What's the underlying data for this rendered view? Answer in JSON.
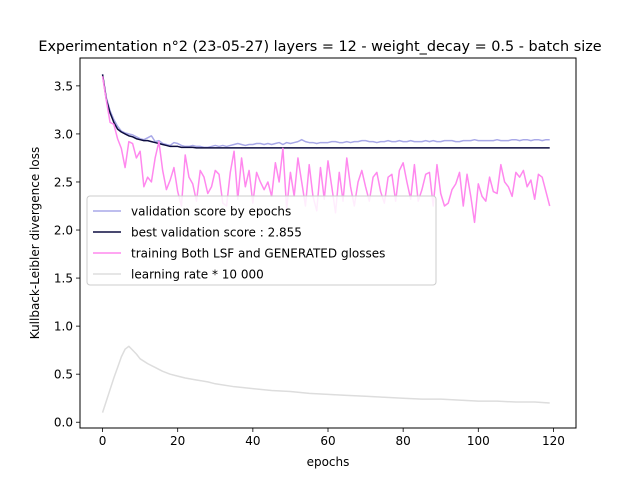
{
  "chart_data": {
    "type": "line",
    "title": "Experimentation n°2 (23-05-27) layers = 12 - weight_decay = 0.5 - batch size",
    "xlabel": "epochs",
    "ylabel": "Kullback-Leibler divergence loss",
    "xlim": [
      -6,
      126
    ],
    "ylim": [
      -0.06,
      3.79
    ],
    "xticks": [
      0,
      20,
      40,
      60,
      80,
      100,
      120
    ],
    "yticks": [
      0.0,
      0.5,
      1.0,
      1.5,
      2.0,
      2.5,
      3.0,
      3.5
    ],
    "ytick_labels": [
      "0.0",
      "0.5",
      "1.0",
      "1.5",
      "2.0",
      "2.5",
      "3.0",
      "3.5"
    ],
    "legend_position": "center-left",
    "grid": false,
    "series": [
      {
        "name": "validation score by epochs",
        "color": "#a8a8e8",
        "x": [
          0,
          1,
          2,
          3,
          4,
          5,
          6,
          7,
          8,
          9,
          10,
          11,
          12,
          13,
          14,
          15,
          16,
          17,
          18,
          19,
          20,
          21,
          22,
          23,
          24,
          25,
          26,
          27,
          28,
          29,
          30,
          31,
          32,
          33,
          34,
          35,
          36,
          37,
          38,
          39,
          40,
          41,
          42,
          43,
          44,
          45,
          46,
          47,
          48,
          49,
          50,
          51,
          52,
          53,
          54,
          55,
          56,
          57,
          58,
          59,
          60,
          61,
          62,
          63,
          64,
          65,
          66,
          67,
          68,
          69,
          70,
          71,
          72,
          73,
          74,
          75,
          76,
          77,
          78,
          79,
          80,
          81,
          82,
          83,
          84,
          85,
          86,
          87,
          88,
          89,
          90,
          91,
          92,
          93,
          94,
          95,
          96,
          97,
          98,
          99,
          100,
          101,
          102,
          103,
          104,
          105,
          106,
          107,
          108,
          109,
          110,
          111,
          112,
          113,
          114,
          115,
          116,
          117,
          118,
          119
        ],
        "y": [
          3.62,
          3.38,
          3.24,
          3.15,
          3.08,
          3.03,
          3.01,
          3.0,
          2.99,
          2.97,
          2.95,
          2.94,
          2.96,
          2.98,
          2.92,
          2.93,
          2.9,
          2.89,
          2.88,
          2.91,
          2.9,
          2.88,
          2.87,
          2.87,
          2.88,
          2.87,
          2.87,
          2.86,
          2.86,
          2.87,
          2.88,
          2.87,
          2.88,
          2.87,
          2.88,
          2.89,
          2.9,
          2.89,
          2.88,
          2.89,
          2.89,
          2.9,
          2.9,
          2.89,
          2.9,
          2.89,
          2.9,
          2.91,
          2.89,
          2.91,
          2.9,
          2.91,
          2.92,
          2.94,
          2.92,
          2.91,
          2.91,
          2.9,
          2.91,
          2.91,
          2.91,
          2.92,
          2.92,
          2.91,
          2.91,
          2.92,
          2.91,
          2.92,
          2.92,
          2.93,
          2.93,
          2.92,
          2.92,
          2.91,
          2.92,
          2.92,
          2.93,
          2.92,
          2.92,
          2.93,
          2.92,
          2.92,
          2.93,
          2.92,
          2.92,
          2.92,
          2.93,
          2.92,
          2.93,
          2.92,
          2.92,
          2.93,
          2.93,
          2.93,
          2.92,
          2.92,
          2.93,
          2.93,
          2.93,
          2.94,
          2.93,
          2.93,
          2.93,
          2.93,
          2.93,
          2.94,
          2.93,
          2.93,
          2.93,
          2.94,
          2.94,
          2.93,
          2.94,
          2.94,
          2.93,
          2.94,
          2.94,
          2.93,
          2.94,
          2.94
        ]
      },
      {
        "name": "best validation score : 2.855",
        "color": "#0d0d40",
        "x": [
          0,
          1,
          2,
          3,
          4,
          5,
          6,
          7,
          8,
          9,
          10,
          11,
          12,
          13,
          14,
          15,
          16,
          17,
          18,
          19,
          20,
          21,
          22,
          23,
          24,
          25,
          26,
          27,
          28,
          29,
          30,
          40,
          50,
          60,
          70,
          80,
          90,
          100,
          110,
          119
        ],
        "y": [
          3.62,
          3.36,
          3.22,
          3.12,
          3.05,
          3.02,
          3.0,
          2.98,
          2.97,
          2.95,
          2.94,
          2.93,
          2.93,
          2.92,
          2.91,
          2.9,
          2.89,
          2.88,
          2.87,
          2.87,
          2.87,
          2.86,
          2.86,
          2.86,
          2.86,
          2.855,
          2.855,
          2.855,
          2.855,
          2.855,
          2.855,
          2.855,
          2.855,
          2.855,
          2.855,
          2.855,
          2.855,
          2.855,
          2.855,
          2.855
        ]
      },
      {
        "name": "training Both LSF and GENERATED glosses",
        "color": "#ff88ee",
        "x": [
          0,
          1,
          2,
          3,
          4,
          5,
          6,
          7,
          8,
          9,
          10,
          11,
          12,
          13,
          14,
          15,
          16,
          17,
          18,
          19,
          20,
          21,
          22,
          23,
          24,
          25,
          26,
          27,
          28,
          29,
          30,
          31,
          32,
          33,
          34,
          35,
          36,
          37,
          38,
          39,
          40,
          41,
          42,
          43,
          44,
          45,
          46,
          47,
          48,
          49,
          50,
          51,
          52,
          53,
          54,
          55,
          56,
          57,
          58,
          59,
          60,
          61,
          62,
          63,
          64,
          65,
          66,
          67,
          68,
          69,
          70,
          71,
          72,
          73,
          74,
          75,
          76,
          77,
          78,
          79,
          80,
          81,
          82,
          83,
          84,
          85,
          86,
          87,
          88,
          89,
          90,
          91,
          92,
          93,
          94,
          95,
          96,
          97,
          98,
          99,
          100,
          101,
          102,
          103,
          104,
          105,
          106,
          107,
          108,
          109,
          110,
          111,
          112,
          113,
          114,
          115,
          116,
          117,
          118,
          119
        ],
        "y": [
          3.6,
          3.35,
          3.12,
          3.1,
          2.95,
          2.85,
          2.65,
          2.92,
          2.9,
          2.75,
          2.82,
          2.45,
          2.55,
          2.5,
          2.75,
          2.92,
          2.62,
          2.42,
          2.52,
          2.65,
          2.4,
          2.25,
          2.78,
          2.55,
          2.48,
          2.3,
          2.62,
          2.55,
          2.38,
          2.45,
          2.62,
          2.58,
          2.28,
          2.25,
          2.6,
          2.82,
          2.32,
          2.75,
          2.45,
          2.62,
          2.28,
          2.6,
          2.5,
          2.42,
          2.5,
          2.35,
          2.7,
          2.5,
          2.85,
          2.22,
          2.6,
          2.35,
          2.75,
          2.5,
          2.25,
          2.68,
          2.35,
          2.2,
          2.65,
          2.32,
          2.72,
          2.45,
          2.18,
          2.6,
          2.3,
          2.75,
          2.45,
          2.25,
          2.5,
          2.62,
          2.45,
          2.3,
          2.55,
          2.6,
          2.4,
          2.28,
          2.55,
          2.58,
          2.3,
          2.62,
          2.7,
          2.5,
          2.32,
          2.68,
          2.3,
          2.42,
          2.58,
          2.6,
          2.25,
          2.68,
          2.38,
          2.25,
          2.28,
          2.42,
          2.48,
          2.6,
          2.25,
          2.58,
          2.35,
          2.08,
          2.48,
          2.35,
          2.3,
          2.55,
          2.4,
          2.38,
          2.68,
          2.5,
          2.45,
          2.35,
          2.6,
          2.55,
          2.62,
          2.45,
          2.52,
          2.32,
          2.58,
          2.55,
          2.4,
          2.25
        ]
      },
      {
        "name": "learning rate * 10 000",
        "color": "#dddddd",
        "x": [
          0,
          1,
          2,
          3,
          4,
          5,
          6,
          7,
          8,
          9,
          10,
          12,
          14,
          16,
          18,
          20,
          22,
          25,
          28,
          30,
          35,
          40,
          45,
          50,
          55,
          60,
          65,
          70,
          75,
          80,
          85,
          90,
          95,
          100,
          105,
          110,
          115,
          119
        ],
        "y": [
          0.1,
          0.22,
          0.34,
          0.46,
          0.57,
          0.68,
          0.76,
          0.79,
          0.75,
          0.71,
          0.66,
          0.61,
          0.57,
          0.53,
          0.5,
          0.48,
          0.46,
          0.44,
          0.42,
          0.4,
          0.37,
          0.35,
          0.33,
          0.32,
          0.3,
          0.29,
          0.28,
          0.27,
          0.26,
          0.25,
          0.24,
          0.24,
          0.23,
          0.22,
          0.22,
          0.21,
          0.21,
          0.2
        ]
      }
    ]
  }
}
